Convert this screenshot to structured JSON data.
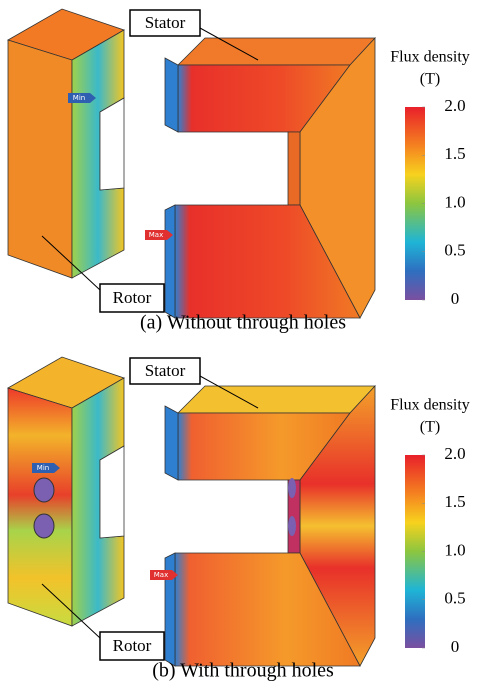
{
  "panels": [
    {
      "caption": "(a) Without through holes",
      "stator_label": "Stator",
      "rotor_label": "Rotor",
      "min_label": "Min",
      "max_label": "Max",
      "colorbar": {
        "title": "Flux density",
        "unit": "(T)",
        "lim": [
          0,
          2
        ],
        "ticks": [
          {
            "value": 2,
            "label": "2.0"
          },
          {
            "value": 1.5,
            "label": "1.5"
          },
          {
            "value": 1,
            "label": "1.0"
          },
          {
            "value": 0.5,
            "label": "0.5"
          },
          0
        ]
      }
    },
    {
      "caption": "(b) With through holes",
      "stator_label": "Stator",
      "rotor_label": "Rotor",
      "min_label": "Min",
      "max_label": "Max",
      "colorbar": {
        "title": "Flux density",
        "unit": "(T)",
        "lim": [
          0,
          2
        ],
        "ticks": [
          {
            "value": 2,
            "label": "2.0"
          },
          {
            "value": 1.5,
            "label": "1.5"
          },
          {
            "value": 1,
            "label": "1.0"
          },
          {
            "value": 0.5,
            "label": "0.5"
          },
          0
        ]
      }
    }
  ]
}
